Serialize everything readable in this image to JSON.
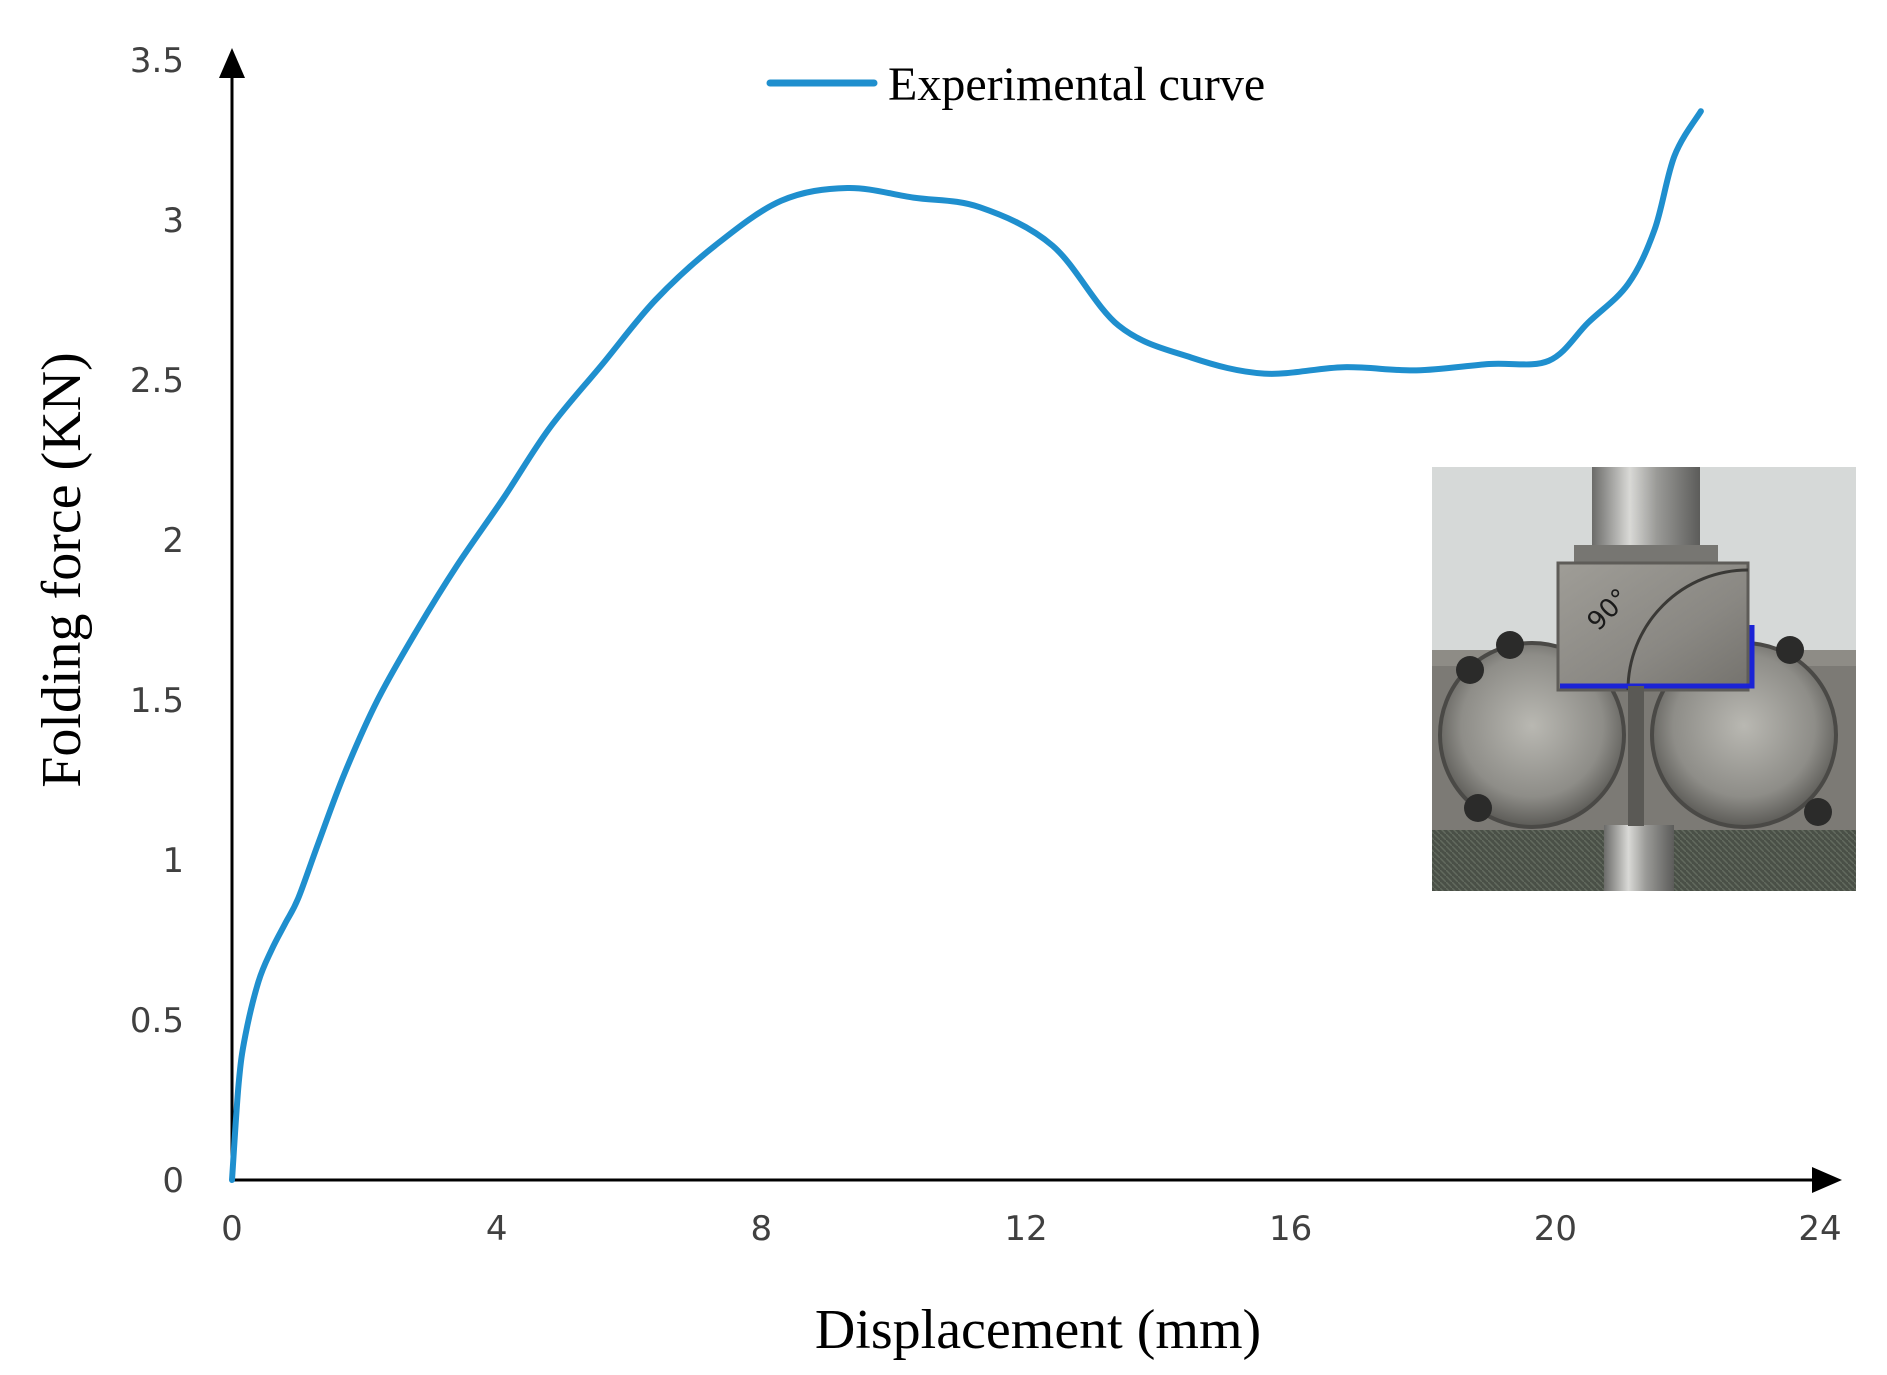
{
  "chart_data": {
    "type": "line",
    "xlabel": "Displacement (mm)",
    "ylabel": "Folding force (KN)",
    "xlim": [
      0,
      24
    ],
    "ylim": [
      0,
      3.5
    ],
    "x_ticks": [
      "0",
      "4",
      "8",
      "12",
      "16",
      "20",
      "24"
    ],
    "y_ticks": [
      "0",
      "0.5",
      "1",
      "1.5",
      "2",
      "2.5",
      "3",
      "3.5"
    ],
    "grid": false,
    "legend_position": "top-center",
    "series": [
      {
        "name": "Experimental curve",
        "color": "#1f8fce",
        "x": [
          0,
          0.1,
          0.2,
          0.4,
          0.6,
          0.8,
          1.0,
          1.3,
          1.7,
          2.2,
          2.8,
          3.4,
          4.1,
          4.8,
          5.6,
          6.4,
          7.3,
          8.3,
          9.3,
          10.3,
          11.3,
          12.4,
          13.4,
          14.5,
          15.6,
          16.8,
          17.9,
          19.0,
          19.9,
          20.5,
          21.1,
          21.5,
          21.8,
          22.2
        ],
        "y": [
          0,
          0.3,
          0.45,
          0.62,
          0.72,
          0.8,
          0.88,
          1.05,
          1.27,
          1.5,
          1.72,
          1.92,
          2.13,
          2.35,
          2.55,
          2.75,
          2.92,
          3.06,
          3.1,
          3.07,
          3.04,
          2.92,
          2.67,
          2.57,
          2.52,
          2.54,
          2.53,
          2.55,
          2.56,
          2.68,
          2.8,
          2.97,
          3.2,
          3.34
        ]
      }
    ]
  },
  "colors": {
    "axis": "#000000",
    "tick_text": "#404040"
  },
  "inset": {
    "angle_marking": "90°"
  }
}
